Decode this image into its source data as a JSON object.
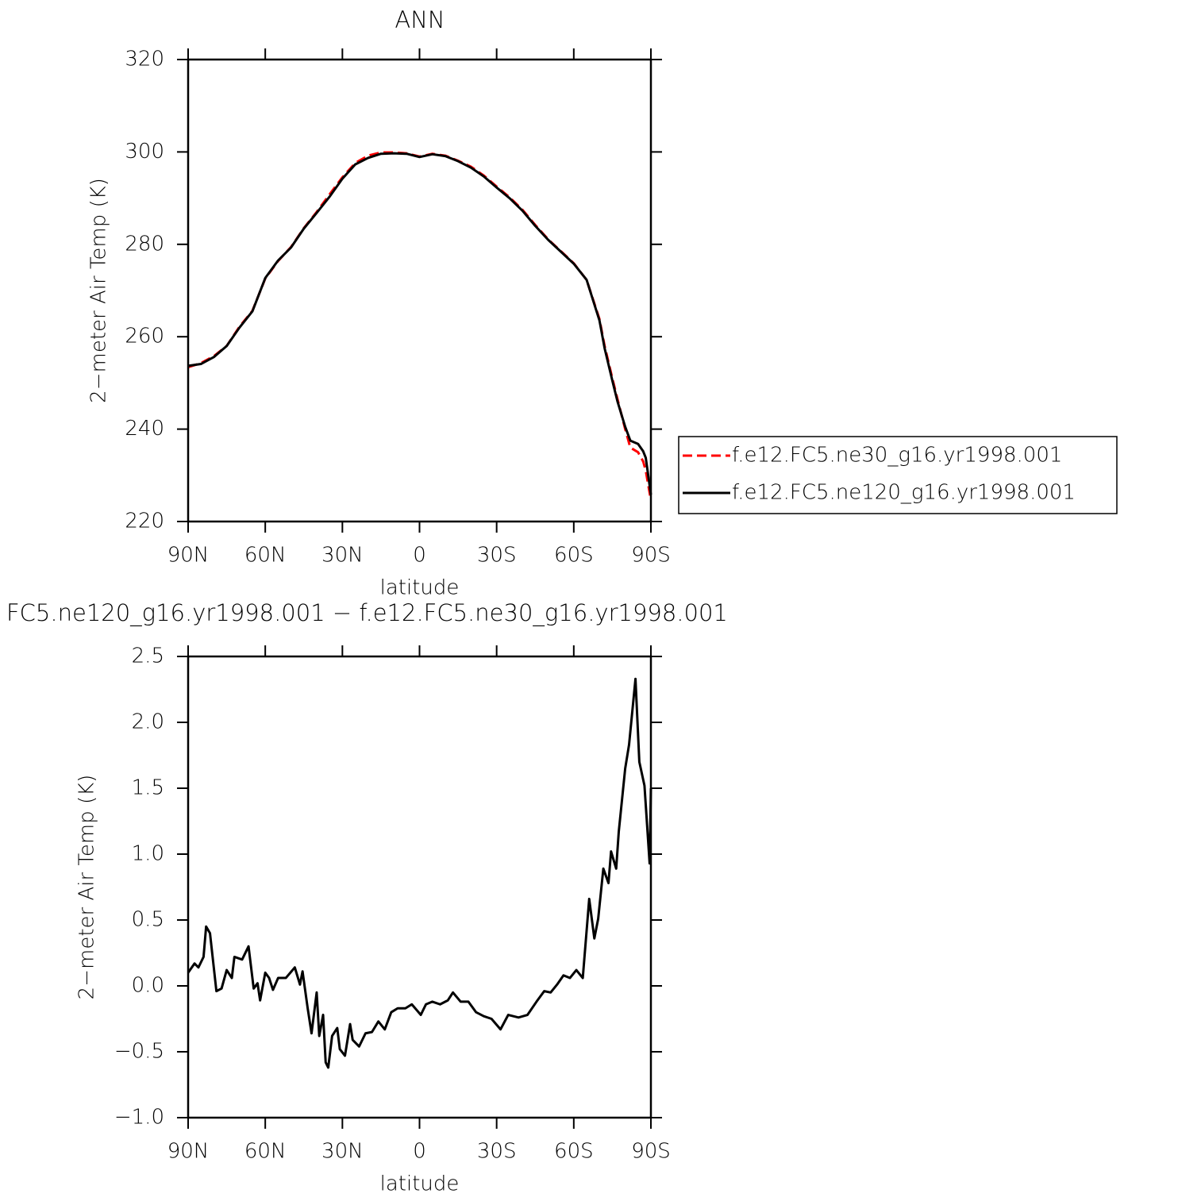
{
  "chart_data": [
    {
      "type": "line",
      "title": "ANN",
      "xlabel": "latitude",
      "ylabel": "2−meter Air Temp (K)",
      "x": [
        90,
        85,
        80,
        75,
        70,
        65,
        60,
        55,
        50,
        45,
        40,
        35,
        30,
        25,
        20,
        15,
        10,
        5,
        0,
        -5,
        -10,
        -15,
        -20,
        -25,
        -30,
        -35,
        -40,
        -45,
        -50,
        -55,
        -60,
        -65,
        -70,
        -72,
        -75,
        -77,
        -80,
        -82,
        -85,
        -87,
        -88,
        -90
      ],
      "series": [
        {
          "name": "f.e12.FC5.ne30_g16.yr1998.001",
          "color": "#ff0000",
          "dash": "dashed",
          "values": [
            253.4,
            254.3,
            255.8,
            258.0,
            262.2,
            265.6,
            272.6,
            276.4,
            279.4,
            283.5,
            287.0,
            290.8,
            294.5,
            297.6,
            299.2,
            299.9,
            299.9,
            299.7,
            299.0,
            299.6,
            299.2,
            298.1,
            296.8,
            294.9,
            292.5,
            290.2,
            287.5,
            284.2,
            281.1,
            278.5,
            275.9,
            272.3,
            263.8,
            258.0,
            251.0,
            246.5,
            240.0,
            236.0,
            235.0,
            233.0,
            231.0,
            224.6
          ]
        },
        {
          "name": "f.e12.FC5.ne120_g16.yr1998.001",
          "color": "#000000",
          "dash": "solid",
          "values": [
            253.7,
            254.1,
            255.6,
            258.0,
            262.0,
            265.5,
            272.7,
            276.5,
            279.3,
            283.4,
            286.8,
            290.3,
            294.2,
            297.3,
            298.7,
            299.6,
            299.7,
            299.6,
            298.9,
            299.5,
            299.1,
            298.0,
            296.6,
            294.7,
            292.3,
            290.0,
            287.3,
            284.0,
            281.0,
            278.4,
            275.8,
            272.3,
            263.5,
            257.5,
            250.5,
            246.0,
            240.5,
            237.5,
            236.8,
            235.2,
            233.8,
            225.8
          ]
        }
      ],
      "xlim": [
        90,
        -90
      ],
      "xticks": [
        {
          "value": 90,
          "label": "90N"
        },
        {
          "value": 60,
          "label": "60N"
        },
        {
          "value": 30,
          "label": "30N"
        },
        0,
        {
          "value": -30,
          "label": "30S"
        },
        {
          "value": -60,
          "label": "60S"
        },
        {
          "value": -90,
          "label": "90S"
        }
      ],
      "ylim": [
        220,
        320
      ],
      "yticks": [
        220,
        240,
        260,
        280,
        300,
        320
      ]
    },
    {
      "type": "line",
      "title": "FC5.ne120_g16.yr1998.001 − f.e12.FC5.ne30_g16.yr1998.001",
      "xlabel": "latitude",
      "ylabel": "2−meter Air Temp (K)",
      "x": [
        90,
        87.5,
        86,
        84,
        83,
        81.5,
        79,
        77,
        75,
        73,
        72,
        69,
        66.5,
        64.5,
        63,
        62,
        60,
        58.5,
        57,
        55,
        52,
        48.5,
        46.5,
        45.5,
        43.5,
        42,
        40,
        39,
        37.5,
        36.5,
        35.5,
        34,
        32,
        31,
        29,
        27,
        26,
        23.5,
        21,
        18.5,
        16,
        13.5,
        11,
        8.5,
        5.5,
        3,
        -0.5,
        -2.5,
        -5,
        -8,
        -11,
        -13,
        -16,
        -19,
        -22,
        -25,
        -28,
        -31.5,
        -34.5,
        -38.5,
        -42,
        -45.5,
        -48.5,
        -51,
        -53.5,
        -56,
        -58.5,
        -61,
        -63.5,
        -66,
        -68,
        -69.5,
        -71.5,
        -73.5,
        -74.5,
        -76.5,
        -77.5,
        -80,
        -81.5,
        -84,
        -85.5,
        -87.5,
        -89.5,
        -90
      ],
      "series": [
        {
          "color": "#000000",
          "dash": "solid",
          "values": [
            0.1,
            0.17,
            0.14,
            0.22,
            0.45,
            0.4,
            -0.04,
            -0.02,
            0.12,
            0.06,
            0.22,
            0.2,
            0.3,
            -0.02,
            0.02,
            -0.11,
            0.1,
            0.06,
            -0.03,
            0.06,
            0.06,
            0.14,
            0.01,
            0.11,
            -0.17,
            -0.36,
            -0.05,
            -0.38,
            -0.22,
            -0.58,
            -0.62,
            -0.38,
            -0.32,
            -0.48,
            -0.53,
            -0.29,
            -0.41,
            -0.46,
            -0.36,
            -0.35,
            -0.27,
            -0.33,
            -0.2,
            -0.17,
            -0.17,
            -0.14,
            -0.22,
            -0.14,
            -0.12,
            -0.14,
            -0.11,
            -0.05,
            -0.12,
            -0.12,
            -0.2,
            -0.23,
            -0.25,
            -0.33,
            -0.22,
            -0.24,
            -0.22,
            -0.12,
            -0.04,
            -0.05,
            0.01,
            0.08,
            0.06,
            0.12,
            0.06,
            0.66,
            0.36,
            0.51,
            0.89,
            0.78,
            1.02,
            0.89,
            1.17,
            1.65,
            1.83,
            2.33,
            1.7,
            1.52,
            0.93,
            1.5
          ]
        }
      ],
      "xlim": [
        90,
        -90
      ],
      "xticks": [
        {
          "value": 90,
          "label": "90N"
        },
        {
          "value": 60,
          "label": "60N"
        },
        {
          "value": 30,
          "label": "30N"
        },
        0,
        {
          "value": -30,
          "label": "30S"
        },
        {
          "value": -60,
          "label": "60S"
        },
        {
          "value": -90,
          "label": "90S"
        }
      ],
      "ylim": [
        -1,
        2.5
      ],
      "yticks": [
        {
          "value": -1,
          "label": "−1.0"
        },
        {
          "value": -0.5,
          "label": "−0.5"
        },
        {
          "value": 0,
          "label": "0.0"
        },
        0.5,
        {
          "value": 1,
          "label": "1.0"
        },
        1.5,
        {
          "value": 2,
          "label": "2.0"
        },
        2.5
      ]
    }
  ]
}
